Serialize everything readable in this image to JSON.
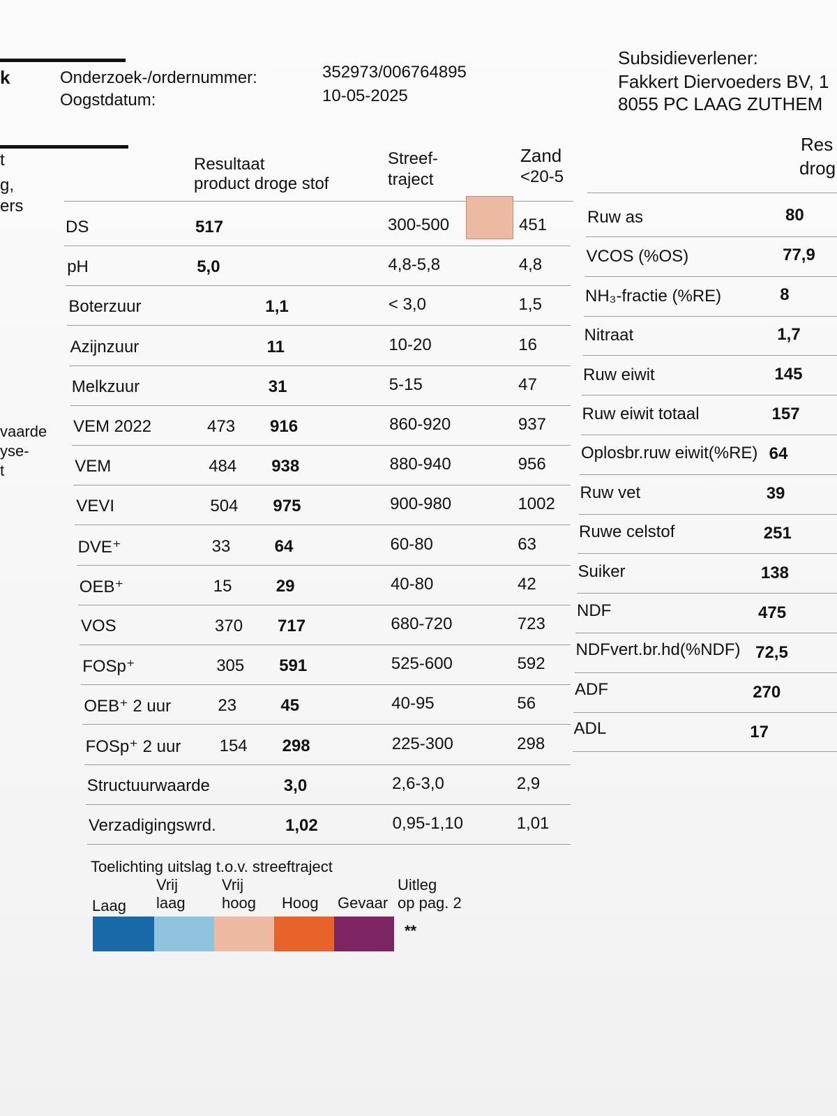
{
  "left_margin": {
    "l1": "k",
    "l2": "t",
    "l3": "g,",
    "l4": "ers",
    "l5": "vaarde",
    "l6": "yse-",
    "l7": "t"
  },
  "header": {
    "order_label": "Onderzoek-/ordernummer:",
    "harvest_label": "Oogstdatum:",
    "order_number": "352973/006764895",
    "harvest_date": "10-05-2025",
    "subsidy_title": "Subsidieverlener:",
    "subsidy_name": "Fakkert Diervoeders BV, 1",
    "subsidy_address": "8055 PC  LAAG ZUTHEM"
  },
  "table": {
    "col_result_1": "Resultaat",
    "col_result_2": "product droge stof",
    "col_target_1": "Streef-",
    "col_target_2": "traject",
    "col_sand_1": "Zand",
    "col_sand_2": "<20-5",
    "col_right_1": "Res",
    "col_right_2": "drog",
    "rows": [
      {
        "name": "DS",
        "product": "",
        "dry": "517",
        "target": "300-500",
        "sand": "451"
      },
      {
        "name": "pH",
        "product": "",
        "dry": "5,0",
        "target": "4,8-5,8",
        "sand": "4,8"
      },
      {
        "name": "Boterzuur",
        "product": "",
        "dry": "1,1",
        "target": "< 3,0",
        "sand": "1,5"
      },
      {
        "name": "Azijnzuur",
        "product": "",
        "dry": "11",
        "target": "10-20",
        "sand": "16"
      },
      {
        "name": "Melkzuur",
        "product": "",
        "dry": "31",
        "target": "5-15",
        "sand": "47"
      },
      {
        "name": "VEM 2022",
        "product": "473",
        "dry": "916",
        "target": "860-920",
        "sand": "937"
      },
      {
        "name": "VEM",
        "product": "484",
        "dry": "938",
        "target": "880-940",
        "sand": "956"
      },
      {
        "name": "VEVI",
        "product": "504",
        "dry": "975",
        "target": "900-980",
        "sand": "1002"
      },
      {
        "name": "DVE⁺",
        "product": "33",
        "dry": "64",
        "target": "60-80",
        "sand": "63"
      },
      {
        "name": "OEB⁺",
        "product": "15",
        "dry": "29",
        "target": "40-80",
        "sand": "42"
      },
      {
        "name": "VOS",
        "product": "370",
        "dry": "717",
        "target": "680-720",
        "sand": "723"
      },
      {
        "name": "FOSp⁺",
        "product": "305",
        "dry": "591",
        "target": "525-600",
        "sand": "592"
      },
      {
        "name": "OEB⁺ 2 uur",
        "product": "23",
        "dry": "45",
        "target": "40-95",
        "sand": "56"
      },
      {
        "name": "FOSp⁺ 2 uur",
        "product": "154",
        "dry": "298",
        "target": "225-300",
        "sand": "298"
      },
      {
        "name": "Structuurwaarde",
        "product": "",
        "dry": "3,0",
        "target": "2,6-3,0",
        "sand": "2,9"
      },
      {
        "name": "Verzadigingswrd.",
        "product": "",
        "dry": "1,02",
        "target": "0,95-1,10",
        "sand": "1,01"
      }
    ],
    "right_rows": [
      {
        "name": "Ruw as",
        "value": "80"
      },
      {
        "name": "VCOS (%OS)",
        "value": "77,9"
      },
      {
        "name": "NH₃-fractie (%RE)",
        "value": "8"
      },
      {
        "name": "Nitraat",
        "value": "1,7"
      },
      {
        "name": "Ruw eiwit",
        "value": "145"
      },
      {
        "name": "Ruw eiwit totaal",
        "value": "157"
      },
      {
        "name": "Oplosbr.ruw eiwit(%RE)",
        "value": "64"
      },
      {
        "name": "Ruw vet",
        "value": "39"
      },
      {
        "name": "Ruwe celstof",
        "value": "251"
      },
      {
        "name": "Suiker",
        "value": "138"
      },
      {
        "name": "NDF",
        "value": "475"
      },
      {
        "name": "NDFvert.br.hd(%NDF)",
        "value": "72,5"
      },
      {
        "name": "ADF",
        "value": "270"
      },
      {
        "name": "ADL",
        "value": "17"
      }
    ]
  },
  "legend": {
    "title": "Toelichting uitslag t.o.v. streeftraject",
    "laag": "Laag",
    "vrij_laag_1": "Vrij",
    "vrij_laag_2": "laag",
    "vrij_hoog_1": "Vrij",
    "vrij_hoog_2": "hoog",
    "hoog": "Hoog",
    "gevaar": "Gevaar",
    "uitleg_1": "Uitleg",
    "uitleg_2": "op pag. 2",
    "note": "**",
    "colors": {
      "laag": "#1769a8",
      "vrij_laag": "#8fc3de",
      "vrij_hoog": "#ecb9a2",
      "hoog": "#e7632a",
      "gevaar": "#7d2463"
    }
  }
}
